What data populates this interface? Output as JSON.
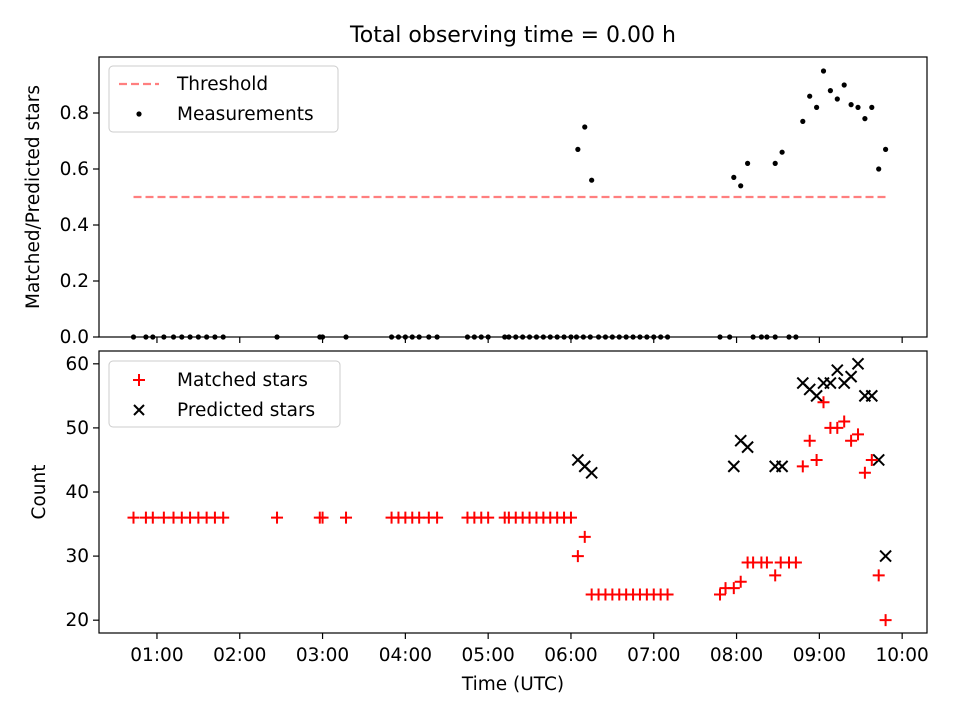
{
  "figure_title": "Total observing time = 0.00 h",
  "x_tick_labels": [
    "01:00",
    "02:00",
    "03:00",
    "04:00",
    "05:00",
    "06:00",
    "07:00",
    "08:00",
    "09:00",
    "10:00"
  ],
  "xlabel": "Time (UTC)",
  "chart_data": [
    {
      "type": "scatter",
      "title": "Total observing time = 0.00 h",
      "xlabel": "",
      "ylabel": "Matched/Predicted stars",
      "xlim": [
        "00:18",
        "10:18"
      ],
      "ylim": [
        0,
        1.0
      ],
      "y_ticks": [
        0.0,
        0.2,
        0.4,
        0.6,
        0.8
      ],
      "y_tick_labels": [
        "0.0",
        "0.2",
        "0.4",
        "0.6",
        "0.8"
      ],
      "legend_position": "top-left",
      "grid": false,
      "threshold": {
        "name": "Threshold",
        "value": 0.5,
        "x_start": "00:43",
        "x_end": "09:48",
        "color": "#ff7f7f",
        "style": "dashed"
      },
      "series": [
        {
          "name": "Measurements",
          "color": "#000000",
          "marker": "dot",
          "x": [
            "00:43",
            "00:52",
            "00:57",
            "01:05",
            "01:12",
            "01:18",
            "01:24",
            "01:30",
            "01:36",
            "01:42",
            "01:48",
            "02:27",
            "02:58",
            "03:00",
            "03:17",
            "03:50",
            "03:55",
            "04:00",
            "04:05",
            "04:10",
            "04:17",
            "04:23",
            "04:45",
            "04:50",
            "04:55",
            "05:00",
            "05:12",
            "05:15",
            "05:20",
            "05:25",
            "05:30",
            "05:35",
            "05:40",
            "05:45",
            "05:50",
            "05:55",
            "06:00",
            "06:04",
            "06:09",
            "06:14",
            "06:20",
            "06:25",
            "06:30",
            "06:35",
            "06:40",
            "06:45",
            "06:50",
            "06:55",
            "07:00",
            "07:05",
            "07:10",
            "07:48",
            "07:55",
            "08:12",
            "08:18",
            "08:22",
            "08:28",
            "08:38",
            "08:43",
            "06:05",
            "06:10",
            "06:15",
            "07:58",
            "08:03",
            "08:08",
            "08:28",
            "08:33",
            "08:48",
            "08:53",
            "08:58",
            "09:03",
            "09:08",
            "09:13",
            "09:18",
            "09:23",
            "09:28",
            "09:33",
            "09:38",
            "09:43",
            "09:48"
          ],
          "y": [
            0,
            0,
            0,
            0,
            0,
            0,
            0,
            0,
            0,
            0,
            0,
            0,
            0,
            0,
            0,
            0,
            0,
            0,
            0,
            0,
            0,
            0,
            0,
            0,
            0,
            0,
            0,
            0,
            0,
            0,
            0,
            0,
            0,
            0,
            0,
            0,
            0,
            0,
            0,
            0,
            0,
            0,
            0,
            0,
            0,
            0,
            0,
            0,
            0,
            0,
            0,
            0,
            0,
            0,
            0,
            0,
            0,
            0,
            0,
            0.67,
            0.75,
            0.56,
            0.57,
            0.54,
            0.62,
            0.62,
            0.66,
            0.77,
            0.86,
            0.82,
            0.95,
            0.88,
            0.85,
            0.9,
            0.83,
            0.82,
            0.78,
            0.82,
            0.6,
            0.67
          ]
        }
      ],
      "legend": [
        {
          "label": "Threshold",
          "kind": "dashed-line",
          "color": "#ff7f7f"
        },
        {
          "label": "Measurements",
          "kind": "dot",
          "color": "#000000"
        }
      ]
    },
    {
      "type": "scatter",
      "title": "",
      "xlabel": "Time (UTC)",
      "ylabel": "Count",
      "xlim": [
        "00:18",
        "10:18"
      ],
      "ylim": [
        18,
        62
      ],
      "y_ticks": [
        20,
        30,
        40,
        50,
        60
      ],
      "y_tick_labels": [
        "20",
        "30",
        "40",
        "50",
        "60"
      ],
      "legend_position": "top-left",
      "grid": false,
      "series": [
        {
          "name": "Matched stars",
          "color": "#ff0000",
          "marker": "plus",
          "x": [
            "00:43",
            "00:52",
            "00:57",
            "01:05",
            "01:12",
            "01:18",
            "01:24",
            "01:30",
            "01:36",
            "01:42",
            "01:48",
            "02:27",
            "02:58",
            "03:00",
            "03:17",
            "03:50",
            "03:55",
            "04:00",
            "04:05",
            "04:10",
            "04:17",
            "04:23",
            "04:45",
            "04:50",
            "04:55",
            "05:00",
            "05:12",
            "05:15",
            "05:20",
            "05:25",
            "05:30",
            "05:35",
            "05:40",
            "05:45",
            "05:50",
            "05:55",
            "06:00",
            "06:05",
            "06:10",
            "06:15",
            "06:20",
            "06:25",
            "06:30",
            "06:35",
            "06:40",
            "06:45",
            "06:50",
            "06:55",
            "07:00",
            "07:05",
            "07:10",
            "07:48",
            "07:52",
            "07:58",
            "08:03",
            "08:08",
            "08:12",
            "08:18",
            "08:22",
            "08:28",
            "08:32",
            "08:38",
            "08:43",
            "08:48",
            "08:53",
            "08:58",
            "09:03",
            "09:08",
            "09:13",
            "09:18",
            "09:23",
            "09:28",
            "09:33",
            "09:38",
            "09:43",
            "09:48"
          ],
          "y": [
            36,
            36,
            36,
            36,
            36,
            36,
            36,
            36,
            36,
            36,
            36,
            36,
            36,
            36,
            36,
            36,
            36,
            36,
            36,
            36,
            36,
            36,
            36,
            36,
            36,
            36,
            36,
            36,
            36,
            36,
            36,
            36,
            36,
            36,
            36,
            36,
            36,
            30,
            33,
            24,
            24,
            24,
            24,
            24,
            24,
            24,
            24,
            24,
            24,
            24,
            24,
            24,
            25,
            25,
            26,
            29,
            29,
            29,
            29,
            27,
            29,
            29,
            29,
            44,
            48,
            45,
            54,
            50,
            50,
            51,
            48,
            49,
            43,
            45,
            27,
            20
          ]
        },
        {
          "name": "Predicted stars",
          "color": "#000000",
          "marker": "x",
          "x": [
            "06:05",
            "06:10",
            "06:15",
            "07:58",
            "08:03",
            "08:08",
            "08:28",
            "08:33",
            "08:48",
            "08:53",
            "08:58",
            "09:03",
            "09:08",
            "09:13",
            "09:18",
            "09:23",
            "09:28",
            "09:33",
            "09:38",
            "09:43",
            "09:48"
          ],
          "y": [
            45,
            44,
            43,
            44,
            48,
            47,
            44,
            44,
            57,
            56,
            55,
            57,
            57,
            59,
            57,
            58,
            60,
            55,
            55,
            45,
            30
          ]
        }
      ],
      "legend": [
        {
          "label": "Matched stars",
          "kind": "plus",
          "color": "#ff0000"
        },
        {
          "label": "Predicted stars",
          "kind": "x",
          "color": "#000000"
        }
      ]
    }
  ]
}
